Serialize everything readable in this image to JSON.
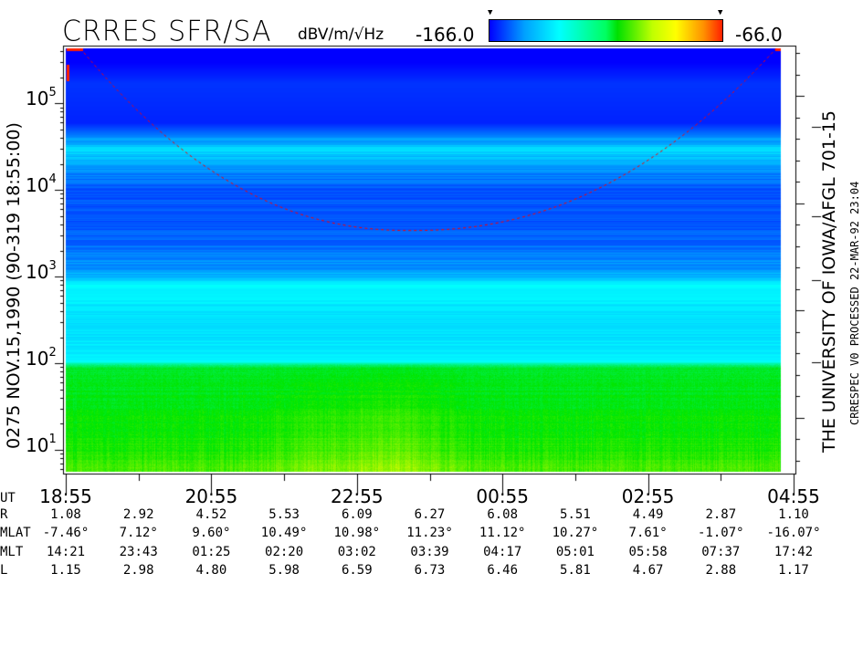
{
  "header": {
    "title": "CRRES SFR/SA",
    "units": "dBV/m/√Hz",
    "colorbar_min": "-166.0",
    "colorbar_max": "-66.0",
    "marker_glyph": "▼"
  },
  "left_label": "0275  NOV.15,1990  (90-319 18:55:00)",
  "right_label_main": "THE UNIVERSITY OF IOWA/AFGL 701-15",
  "right_label_secondary": "CRRESPEC V0    PROCESSED 22-MAR-92  23:04",
  "yticks": [
    {
      "base": "10",
      "exp": "5",
      "value": 100000
    },
    {
      "base": "10",
      "exp": "4",
      "value": 10000
    },
    {
      "base": "10",
      "exp": "3",
      "value": 1000
    },
    {
      "base": "10",
      "exp": "2",
      "value": 100
    },
    {
      "base": "10",
      "exp": "1",
      "value": 10
    }
  ],
  "table": {
    "rows": [
      {
        "label": "UT",
        "values": [
          "18:55",
          "",
          "20:55",
          "",
          "22:55",
          "",
          "00:55",
          "",
          "02:55",
          "",
          "04:55"
        ]
      },
      {
        "label": "R",
        "values": [
          "1.08",
          "2.92",
          "4.52",
          "5.53",
          "6.09",
          "6.27",
          "6.08",
          "5.51",
          "4.49",
          "2.87",
          "1.10"
        ]
      },
      {
        "label": "MLAT",
        "values": [
          "-7.46°",
          "7.12°",
          "9.60°",
          "10.49°",
          "10.98°",
          "11.23°",
          "11.12°",
          "10.27°",
          "7.61°",
          "-1.07°",
          "-16.07°"
        ]
      },
      {
        "label": "MLT",
        "values": [
          "14:21",
          "23:43",
          "01:25",
          "02:20",
          "03:02",
          "03:39",
          "04:17",
          "05:01",
          "05:58",
          "07:37",
          "17:42"
        ]
      },
      {
        "label": "L",
        "values": [
          "1.15",
          "2.98",
          "4.80",
          "5.98",
          "6.59",
          "6.73",
          "6.46",
          "5.81",
          "4.67",
          "2.88",
          "1.17"
        ]
      }
    ]
  },
  "chart_data": {
    "type": "heatmap",
    "title": "CRRES SFR/SA",
    "colorbar": {
      "label": "dBV/m/√Hz",
      "min": -166.0,
      "max": -66.0,
      "colors": [
        "#0000ff",
        "#00ffff",
        "#00e000",
        "#ffff00",
        "#ff2000"
      ]
    },
    "x": {
      "label": "UT",
      "ticks": [
        "18:55",
        "20:55",
        "22:55",
        "00:55",
        "02:55",
        "04:55"
      ],
      "range_hours": [
        0,
        10
      ]
    },
    "y": {
      "scale": "log",
      "range": [
        5.6,
        430000
      ],
      "ticks": [
        10,
        100,
        1000,
        10000,
        100000
      ]
    },
    "spectrum_profile_db": [
      {
        "freq": 300000,
        "db": -166
      },
      {
        "freq": 170000,
        "db": -160
      },
      {
        "freq": 60000,
        "db": -162
      },
      {
        "freq": 30000,
        "db": -140
      },
      {
        "freq": 10000,
        "db": -157
      },
      {
        "freq": 3000,
        "db": -155
      },
      {
        "freq": 1200,
        "db": -148
      },
      {
        "freq": 800,
        "db": -137
      },
      {
        "freq": 300,
        "db": -140
      },
      {
        "freq": 110,
        "db": -138
      },
      {
        "freq": 90,
        "db": -118
      },
      {
        "freq": 10,
        "db": -112
      },
      {
        "freq": 6,
        "db": -108
      }
    ],
    "overlay_curve": {
      "color": "#ff0000",
      "style": "dashed",
      "min_freq": 3400,
      "min_time": "23:45"
    }
  }
}
